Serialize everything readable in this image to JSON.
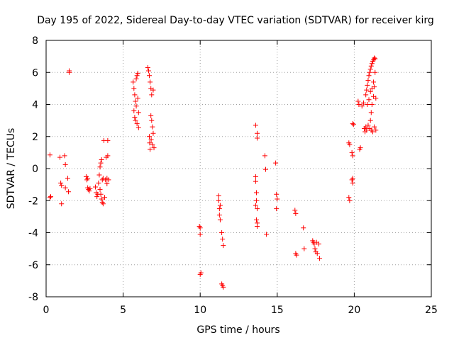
{
  "chart_data": {
    "type": "scatter",
    "title": "Day 195 of 2022, Sidereal Day-to-day VTEC variation (SDTVAR) for receiver kirg",
    "xlabel": "GPS time / hours",
    "ylabel": "SDTVAR / TECUs",
    "xlim": [
      0,
      25
    ],
    "ylim": [
      -8,
      8
    ],
    "xticks": [
      0,
      5,
      10,
      15,
      20,
      25
    ],
    "yticks": [
      -8,
      -6,
      -4,
      -2,
      0,
      2,
      4,
      6,
      8
    ],
    "grid": true,
    "marker": "plus",
    "color": "#ff0000",
    "series": [
      {
        "name": "SDTVAR",
        "points": [
          [
            0.25,
            0.85
          ],
          [
            0.25,
            -1.8
          ],
          [
            0.3,
            -1.75
          ],
          [
            0.9,
            0.7
          ],
          [
            0.95,
            -0.9
          ],
          [
            1.0,
            -1.05
          ],
          [
            1.0,
            -2.2
          ],
          [
            1.2,
            0.8
          ],
          [
            1.25,
            0.25
          ],
          [
            1.25,
            -1.2
          ],
          [
            1.4,
            -0.6
          ],
          [
            1.45,
            -1.45
          ],
          [
            1.5,
            6.0
          ],
          [
            1.5,
            6.1
          ],
          [
            2.6,
            -0.5
          ],
          [
            2.65,
            -0.7
          ],
          [
            2.7,
            -0.6
          ],
          [
            2.7,
            -1.2
          ],
          [
            2.75,
            -1.3
          ],
          [
            2.8,
            -1.4
          ],
          [
            2.85,
            -1.25
          ],
          [
            3.2,
            -1.15
          ],
          [
            3.25,
            -1.5
          ],
          [
            3.3,
            -1.75
          ],
          [
            3.35,
            -1.6
          ],
          [
            3.4,
            -0.9
          ],
          [
            3.45,
            -0.4
          ],
          [
            3.5,
            0.1
          ],
          [
            3.5,
            -1.3
          ],
          [
            3.55,
            0.35
          ],
          [
            3.55,
            -1.6
          ],
          [
            3.6,
            0.55
          ],
          [
            3.6,
            -1.9
          ],
          [
            3.65,
            -0.7
          ],
          [
            3.65,
            -2.1
          ],
          [
            3.7,
            -0.6
          ],
          [
            3.7,
            -2.2
          ],
          [
            3.75,
            1.75
          ],
          [
            3.8,
            -1.8
          ],
          [
            3.85,
            -0.7
          ],
          [
            3.9,
            0.7
          ],
          [
            3.95,
            -0.6
          ],
          [
            3.95,
            -0.95
          ],
          [
            4.0,
            1.75
          ],
          [
            4.0,
            0.8
          ],
          [
            4.05,
            -0.7
          ],
          [
            5.65,
            5.4
          ],
          [
            5.7,
            5.0
          ],
          [
            5.7,
            3.6
          ],
          [
            5.75,
            4.6
          ],
          [
            5.75,
            3.2
          ],
          [
            5.8,
            4.2
          ],
          [
            5.8,
            3.0
          ],
          [
            5.85,
            5.6
          ],
          [
            5.85,
            3.9
          ],
          [
            5.9,
            5.8
          ],
          [
            5.9,
            2.8
          ],
          [
            5.95,
            5.95
          ],
          [
            5.95,
            4.4
          ],
          [
            6.0,
            3.5
          ],
          [
            6.0,
            2.55
          ],
          [
            6.6,
            6.3
          ],
          [
            6.65,
            6.1
          ],
          [
            6.7,
            5.8
          ],
          [
            6.7,
            2.0
          ],
          [
            6.72,
            1.6
          ],
          [
            6.75,
            5.4
          ],
          [
            6.75,
            1.2
          ],
          [
            6.8,
            5.0
          ],
          [
            6.8,
            3.3
          ],
          [
            6.82,
            1.8
          ],
          [
            6.85,
            4.6
          ],
          [
            6.85,
            3.0
          ],
          [
            6.9,
            2.6
          ],
          [
            6.9,
            1.5
          ],
          [
            6.95,
            4.9
          ],
          [
            6.95,
            2.2
          ],
          [
            7.0,
            1.3
          ],
          [
            9.95,
            -3.6
          ],
          [
            10.0,
            -3.7
          ],
          [
            10.0,
            -4.1
          ],
          [
            10.0,
            -6.6
          ],
          [
            10.05,
            -6.5
          ],
          [
            11.2,
            -1.7
          ],
          [
            11.2,
            -2.0
          ],
          [
            11.25,
            -2.5
          ],
          [
            11.25,
            -2.9
          ],
          [
            11.3,
            -3.2
          ],
          [
            11.3,
            -2.3
          ],
          [
            11.4,
            -4.0
          ],
          [
            11.45,
            -4.4
          ],
          [
            11.5,
            -4.8
          ],
          [
            11.4,
            -7.2
          ],
          [
            11.45,
            -7.3
          ],
          [
            11.5,
            -7.4
          ],
          [
            13.6,
            2.7
          ],
          [
            13.7,
            2.2
          ],
          [
            13.7,
            1.9
          ],
          [
            13.6,
            -0.5
          ],
          [
            13.6,
            -0.8
          ],
          [
            13.65,
            -1.5
          ],
          [
            13.65,
            -2.0
          ],
          [
            13.7,
            -2.5
          ],
          [
            13.7,
            -3.4
          ],
          [
            13.65,
            -3.2
          ],
          [
            13.7,
            -3.6
          ],
          [
            13.6,
            -2.3
          ],
          [
            14.2,
            0.8
          ],
          [
            14.25,
            -0.05
          ],
          [
            14.3,
            -4.1
          ],
          [
            14.9,
            0.35
          ],
          [
            14.95,
            -1.6
          ],
          [
            15.0,
            -1.9
          ],
          [
            14.95,
            -2.5
          ],
          [
            16.15,
            -2.6
          ],
          [
            16.2,
            -2.8
          ],
          [
            16.2,
            -5.3
          ],
          [
            16.25,
            -5.4
          ],
          [
            16.7,
            -3.7
          ],
          [
            16.75,
            -5.0
          ],
          [
            17.3,
            -4.5
          ],
          [
            17.35,
            -4.6
          ],
          [
            17.4,
            -4.7
          ],
          [
            17.45,
            -5.0
          ],
          [
            17.5,
            -5.2
          ],
          [
            17.55,
            -4.6
          ],
          [
            17.6,
            -5.3
          ],
          [
            17.7,
            -4.7
          ],
          [
            17.75,
            -5.6
          ],
          [
            19.65,
            1.6
          ],
          [
            19.7,
            1.5
          ],
          [
            19.65,
            -1.8
          ],
          [
            19.7,
            -2.0
          ],
          [
            19.85,
            1.0
          ],
          [
            19.9,
            0.8
          ],
          [
            19.85,
            -0.7
          ],
          [
            19.9,
            -0.6
          ],
          [
            19.9,
            2.8
          ],
          [
            19.95,
            2.75
          ],
          [
            19.9,
            -0.9
          ],
          [
            20.25,
            4.2
          ],
          [
            20.3,
            4.0
          ],
          [
            20.35,
            1.2
          ],
          [
            20.4,
            1.3
          ],
          [
            20.5,
            3.9
          ],
          [
            20.6,
            4.1
          ],
          [
            20.65,
            2.5
          ],
          [
            20.7,
            2.3
          ],
          [
            20.75,
            4.6
          ],
          [
            20.75,
            2.6
          ],
          [
            20.8,
            4.9
          ],
          [
            20.8,
            2.4
          ],
          [
            20.85,
            5.2
          ],
          [
            20.85,
            4.0
          ],
          [
            20.9,
            5.5
          ],
          [
            20.9,
            2.7
          ],
          [
            20.95,
            5.8
          ],
          [
            20.95,
            4.3
          ],
          [
            21.0,
            6.0
          ],
          [
            21.0,
            2.5
          ],
          [
            21.05,
            6.2
          ],
          [
            21.05,
            4.8
          ],
          [
            21.1,
            6.4
          ],
          [
            21.1,
            2.4
          ],
          [
            21.15,
            6.55
          ],
          [
            21.15,
            5.0
          ],
          [
            21.2,
            6.7
          ],
          [
            21.2,
            2.3
          ],
          [
            21.25,
            6.8
          ],
          [
            21.25,
            5.4
          ],
          [
            21.3,
            6.9
          ],
          [
            21.3,
            2.6
          ],
          [
            21.35,
            6.85
          ],
          [
            21.35,
            6.0
          ],
          [
            21.4,
            4.4
          ],
          [
            21.4,
            2.4
          ],
          [
            21.05,
            3.0
          ],
          [
            21.1,
            3.5
          ],
          [
            21.15,
            4.0
          ],
          [
            21.25,
            4.5
          ],
          [
            21.3,
            5.1
          ]
        ]
      }
    ]
  }
}
